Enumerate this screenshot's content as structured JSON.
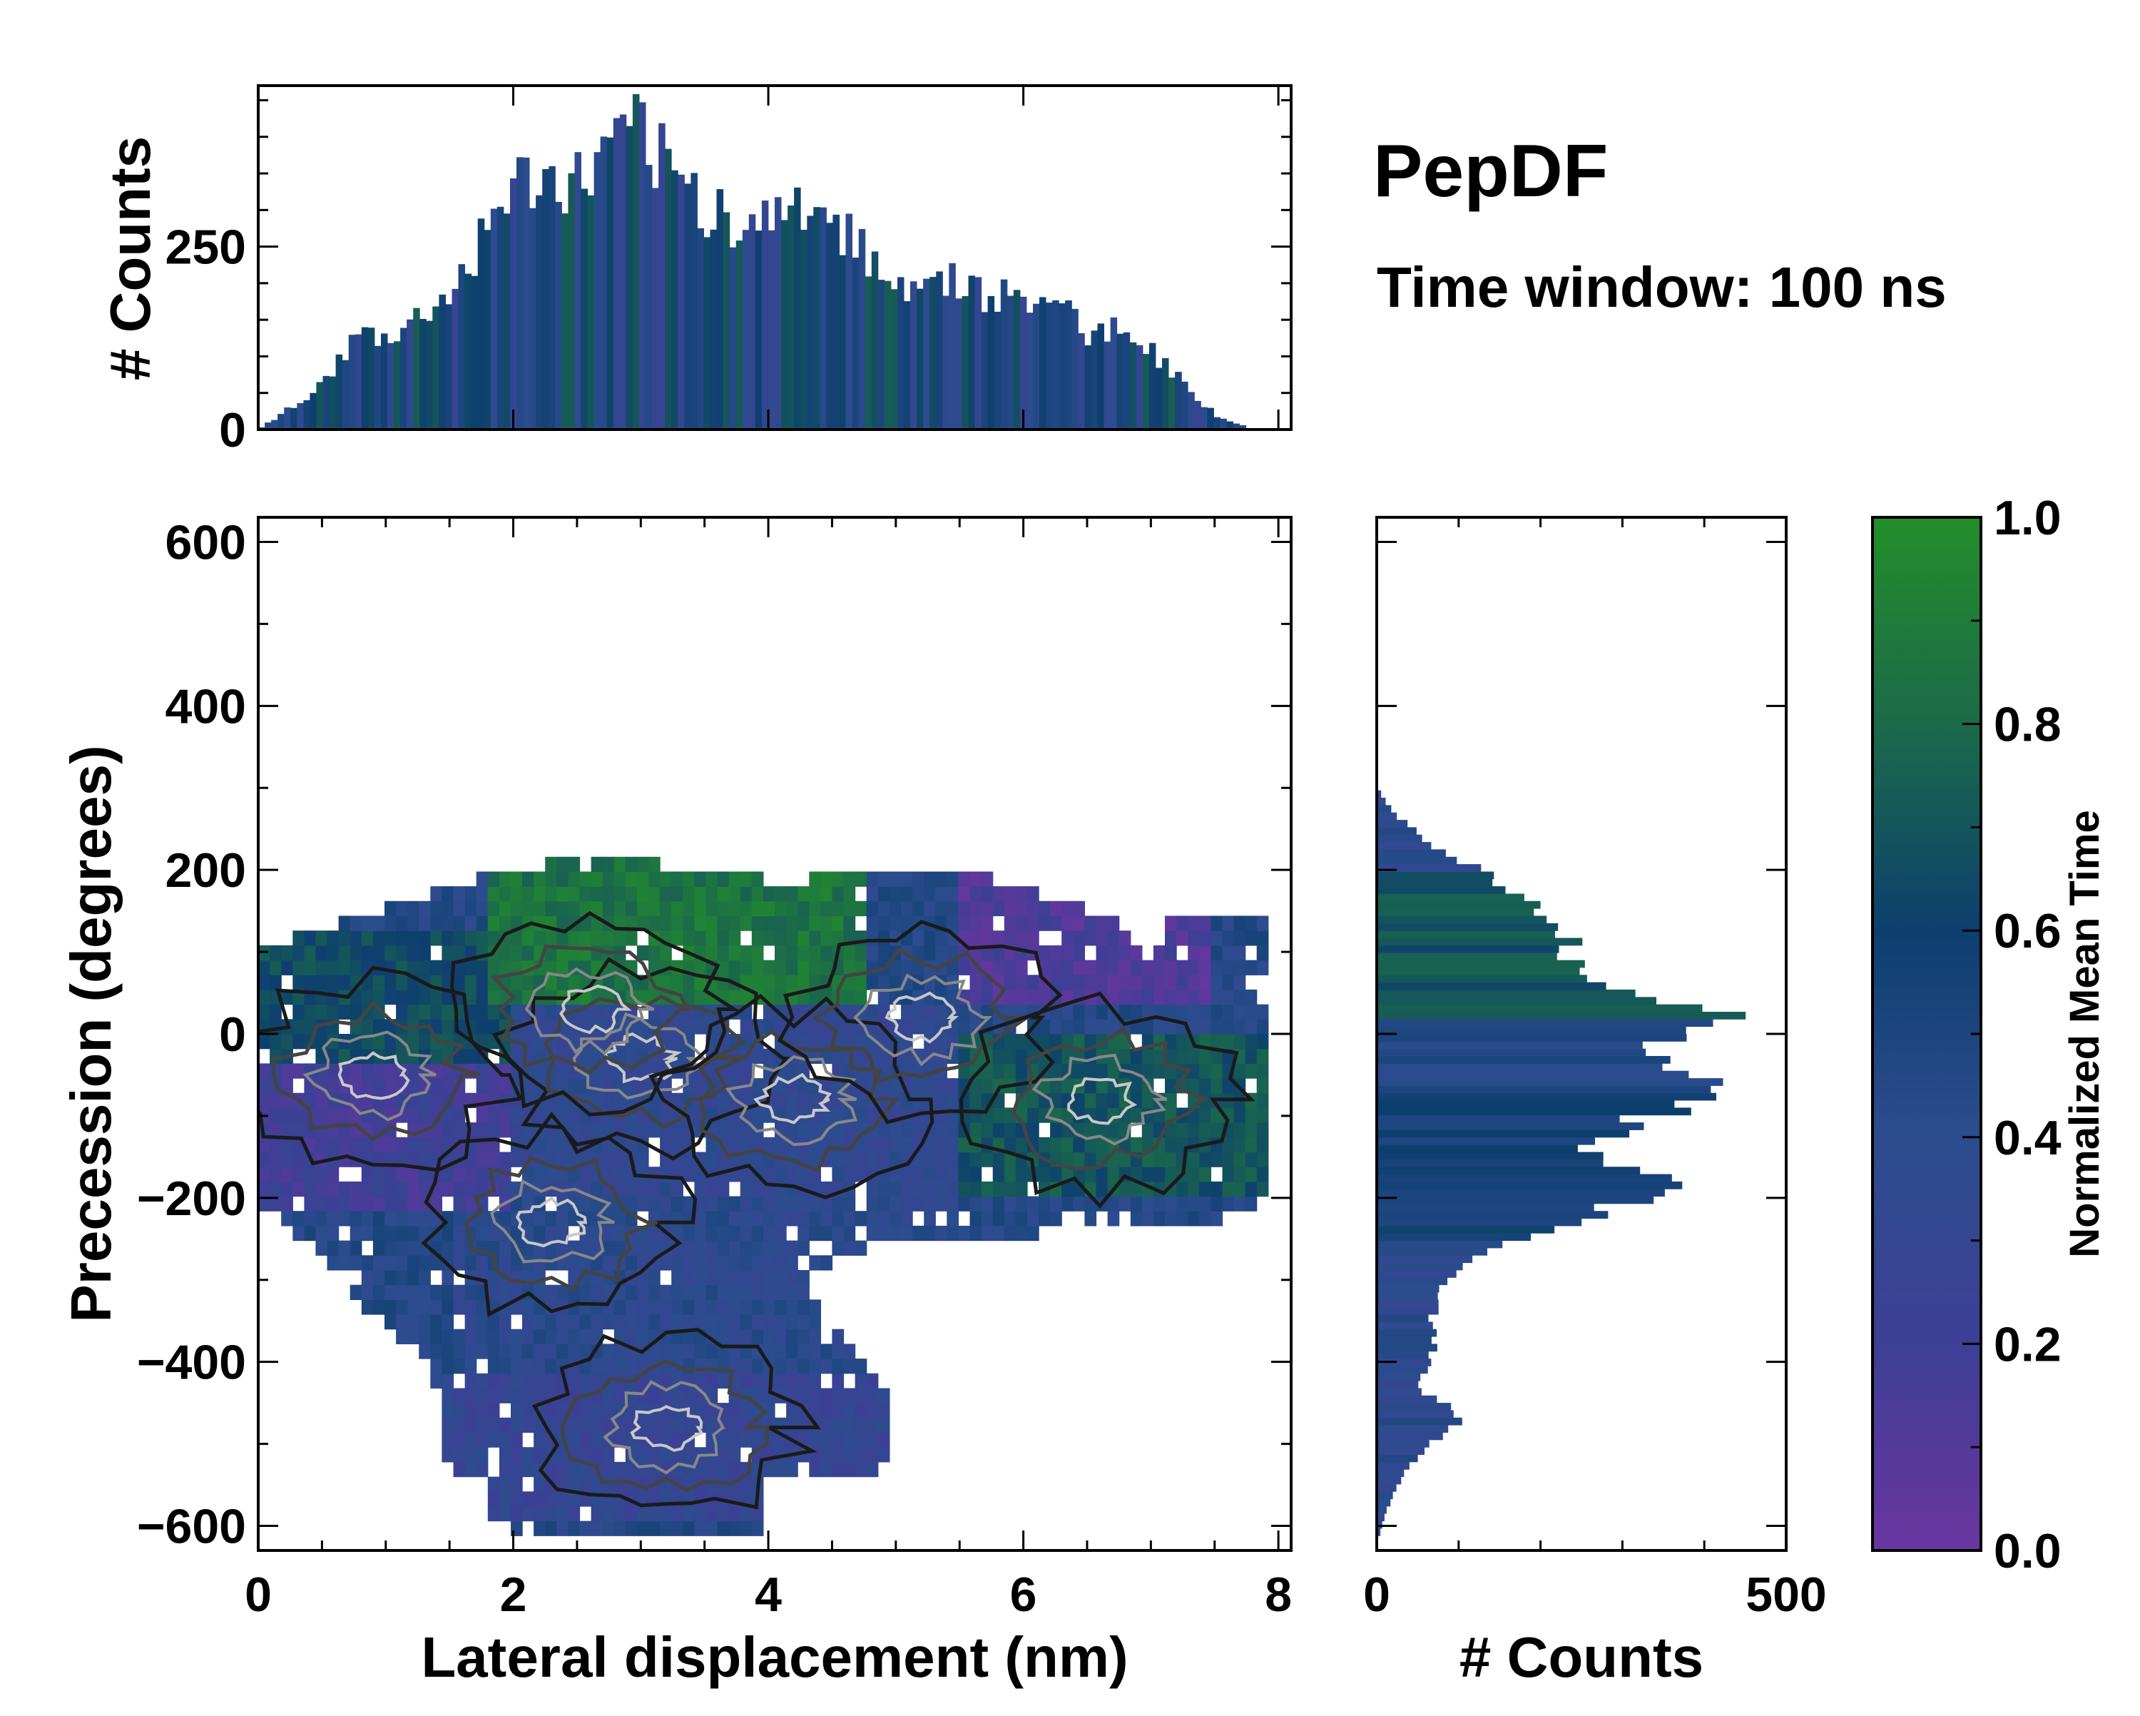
{
  "title": "PepDF",
  "subtitle": "Time window: 100 ns",
  "chart_data": [
    {
      "id": "main_heatmap",
      "type": "heatmap",
      "xlabel": "Lateral displacement (nm)",
      "ylabel": "Precession (degrees)",
      "xlim": [
        0,
        8.1
      ],
      "ylim": [
        -630,
        630
      ],
      "xticks": [
        0,
        2,
        4,
        6,
        8
      ],
      "xtick_labels": [
        "0",
        "2",
        "4",
        "6",
        "8"
      ],
      "yticks": [
        600,
        400,
        200,
        0,
        -200,
        -400,
        -600
      ],
      "ytick_labels": [
        "600",
        "400",
        "200",
        "0",
        "−200",
        "−400",
        "−600"
      ],
      "color_meaning": "Normalized Mean Time",
      "density_peaks_xy": [
        [
          0.9,
          -50
        ],
        [
          2.3,
          -230
        ],
        [
          3.0,
          -30
        ],
        [
          4.2,
          -80
        ],
        [
          2.6,
          30
        ],
        [
          5.2,
          20
        ],
        [
          6.6,
          -80
        ],
        [
          3.2,
          -480
        ]
      ],
      "time_regions": [
        {
          "x": [
            1.8,
            4.8
          ],
          "y": [
            40,
            250
          ],
          "time": 0.85
        },
        {
          "x": [
            5.5,
            7.5
          ],
          "y": [
            40,
            250
          ],
          "time": 0.12
        },
        {
          "x": [
            0.0,
            2.0
          ],
          "y": [
            -220,
            -40
          ],
          "time": 0.2
        },
        {
          "x": [
            0.0,
            2.0
          ],
          "y": [
            -140,
            120
          ],
          "time": 0.65
        },
        {
          "x": [
            2.0,
            5.5
          ],
          "y": [
            -200,
            40
          ],
          "time": 0.35
        },
        {
          "x": [
            5.5,
            8.0
          ],
          "y": [
            -200,
            0
          ],
          "time": 0.7
        },
        {
          "x": [
            1.5,
            5.5
          ],
          "y": [
            -420,
            -200
          ],
          "time": 0.4
        },
        {
          "x": [
            0.8,
            5.0
          ],
          "y": [
            -600,
            -420
          ],
          "time": 0.3
        }
      ]
    },
    {
      "id": "top_histogram",
      "type": "bar",
      "ylabel": "# Counts",
      "xlim": [
        0,
        8.1
      ],
      "ylim": [
        0,
        470
      ],
      "yticks": [
        0,
        250
      ],
      "ytick_labels": [
        "0",
        "250"
      ],
      "x": [
        0.0,
        0.5,
        0.8,
        1.0,
        1.5,
        1.8,
        2.0,
        2.5,
        2.8,
        3.0,
        3.2,
        3.5,
        3.8,
        4.0,
        4.2,
        4.5,
        4.8,
        5.0,
        5.5,
        5.8,
        6.0,
        6.2,
        6.5,
        6.8,
        7.0,
        7.5,
        7.8
      ],
      "values": [
        0,
        60,
        130,
        120,
        180,
        270,
        330,
        330,
        370,
        410,
        360,
        300,
        280,
        280,
        310,
        290,
        240,
        200,
        200,
        175,
        190,
        180,
        130,
        140,
        110,
        20,
        0
      ]
    },
    {
      "id": "right_histogram",
      "type": "bar",
      "orientation": "horizontal",
      "xlabel": "# Counts",
      "xlim": [
        0,
        500
      ],
      "xticks": [
        0,
        500
      ],
      "xtick_labels": [
        "0",
        "500"
      ],
      "y": [
        -620,
        -560,
        -500,
        -470,
        -430,
        -380,
        -330,
        -280,
        -240,
        -200,
        -180,
        -140,
        -100,
        -70,
        -40,
        0,
        20,
        50,
        80,
        120,
        150,
        190,
        230,
        270,
        300
      ],
      "values": [
        0,
        20,
        60,
        110,
        50,
        70,
        70,
        100,
        200,
        320,
        360,
        250,
        330,
        450,
        330,
        360,
        420,
        300,
        250,
        230,
        200,
        140,
        70,
        20,
        0
      ]
    },
    {
      "id": "colorbar",
      "type": "colorbar",
      "label": "Normalized Mean Time",
      "range": [
        0,
        1
      ],
      "ticks": [
        0.0,
        0.2,
        0.4,
        0.6,
        0.8,
        1.0
      ],
      "tick_labels": [
        "0.0",
        "0.2",
        "0.4",
        "0.6",
        "0.8",
        "1.0"
      ],
      "colors": [
        "#6a35a0",
        "#3d3f95",
        "#2c4c8e",
        "#0d3f6e",
        "#1b6a4a",
        "#238e2a"
      ]
    }
  ]
}
